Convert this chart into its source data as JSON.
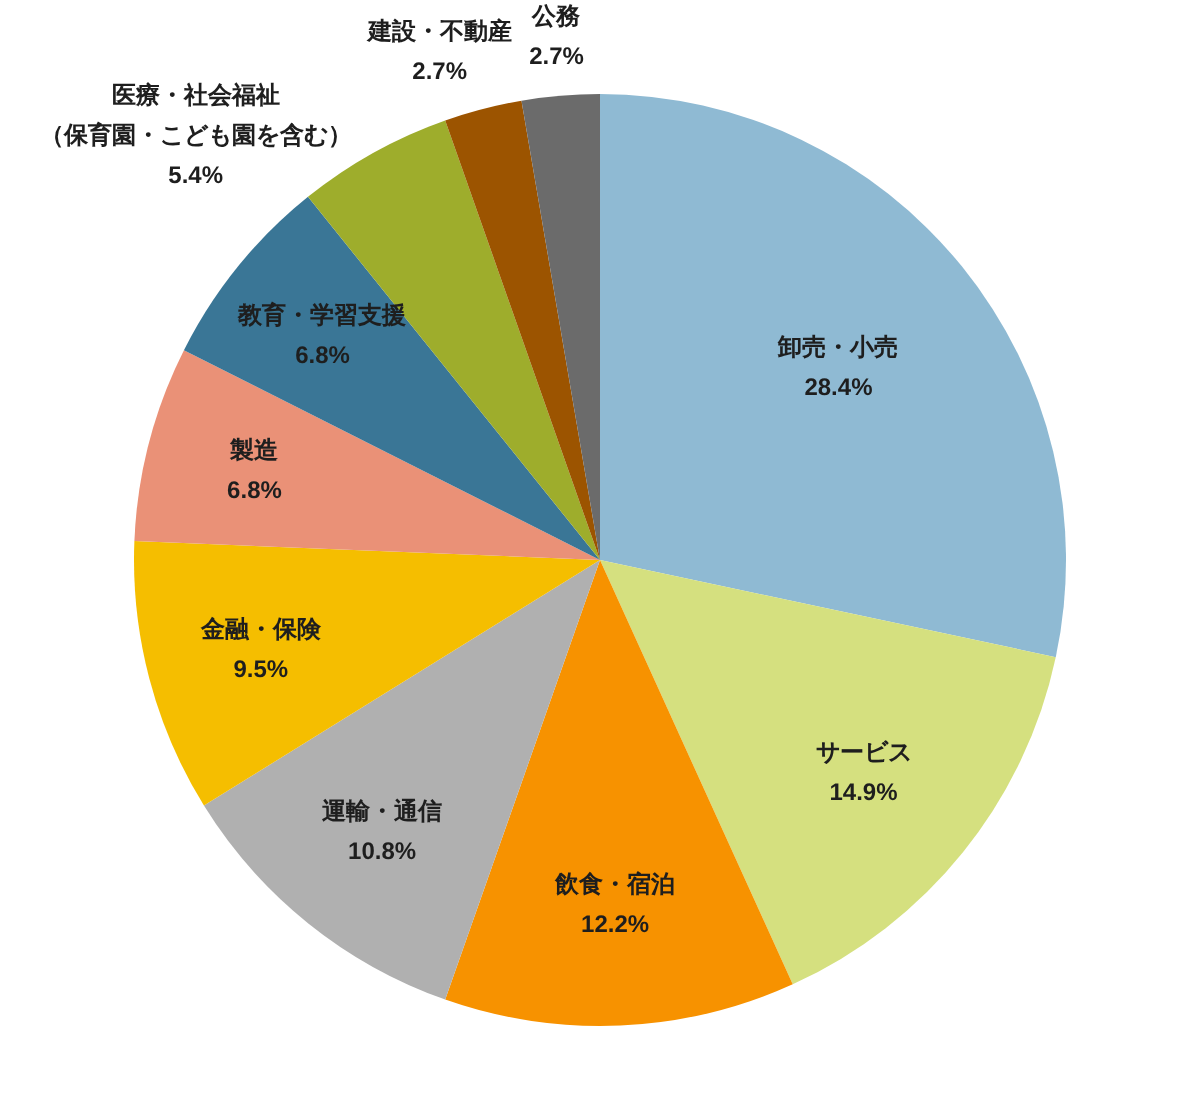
{
  "chart_data": {
    "type": "pie",
    "categories": [
      "卸売・小売",
      "サービス",
      "飲食・宿泊",
      "運輸・通信",
      "金融・保険",
      "製造",
      "教育・学習支援",
      "医療・社会福祉（保育園・こども園を含む）",
      "建設・不動産",
      "公務"
    ],
    "values": [
      28.4,
      14.9,
      12.2,
      10.8,
      9.5,
      6.8,
      6.8,
      5.4,
      2.7,
      2.7
    ],
    "value_labels": [
      "28.4%",
      "14.9%",
      "12.2%",
      "10.8%",
      "9.5%",
      "6.8%",
      "6.8%",
      "5.4%",
      "2.7%",
      "2.7%"
    ],
    "colors": [
      "#8fbad3",
      "#d5e07f",
      "#f79200",
      "#b0b0b0",
      "#f5be00",
      "#ea9177",
      "#3a7696",
      "#9ead2c",
      "#9c5400",
      "#6b6b6b"
    ]
  }
}
